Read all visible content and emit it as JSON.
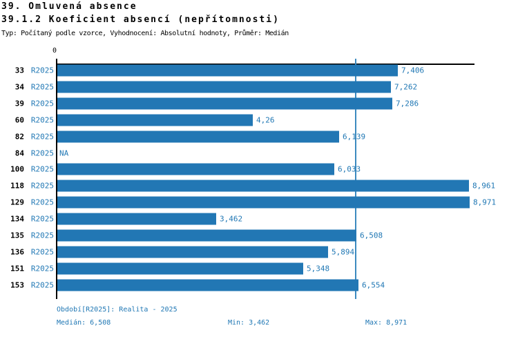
{
  "page": {
    "title1": "39. Omluvená absence",
    "title2": "39.1.2 Koeficient absencí (nepřítomnosti)",
    "meta": "Typ: Počítaný podle vzorce, Vyhodnocení: Absolutní hodnoty, Průměr: Medián"
  },
  "chart_data": {
    "type": "bar",
    "orientation": "horizontal",
    "title": "39.1.2 Koeficient absencí (nepřítomnosti)",
    "origin_label": "0",
    "series_label": "R2025",
    "categories": [
      "33",
      "34",
      "39",
      "60",
      "82",
      "84",
      "100",
      "118",
      "129",
      "134",
      "135",
      "136",
      "151",
      "153"
    ],
    "values": [
      7.406,
      7.262,
      7.286,
      4.26,
      6.139,
      null,
      6.033,
      8.961,
      8.971,
      3.462,
      6.508,
      5.894,
      5.348,
      6.554
    ],
    "value_labels": [
      "7,406",
      "7,262",
      "7,286",
      "4,26",
      "6,139",
      "NA",
      "6,033",
      "8,961",
      "8,971",
      "3,462",
      "6,508",
      "5,894",
      "5,348",
      "6,554"
    ],
    "xlim": [
      0,
      9.1
    ],
    "median_value": 6.508,
    "grid": false,
    "legend": "none",
    "bar_color": "#2277b4",
    "median_line_color": "#3b8abf",
    "label_color": "#1f77b4"
  },
  "footer": {
    "period": "Období[R2025]: Realita - 2025",
    "median": "Medián: 6,508",
    "min": "Min: 3,462",
    "max": "Max: 8,971"
  }
}
